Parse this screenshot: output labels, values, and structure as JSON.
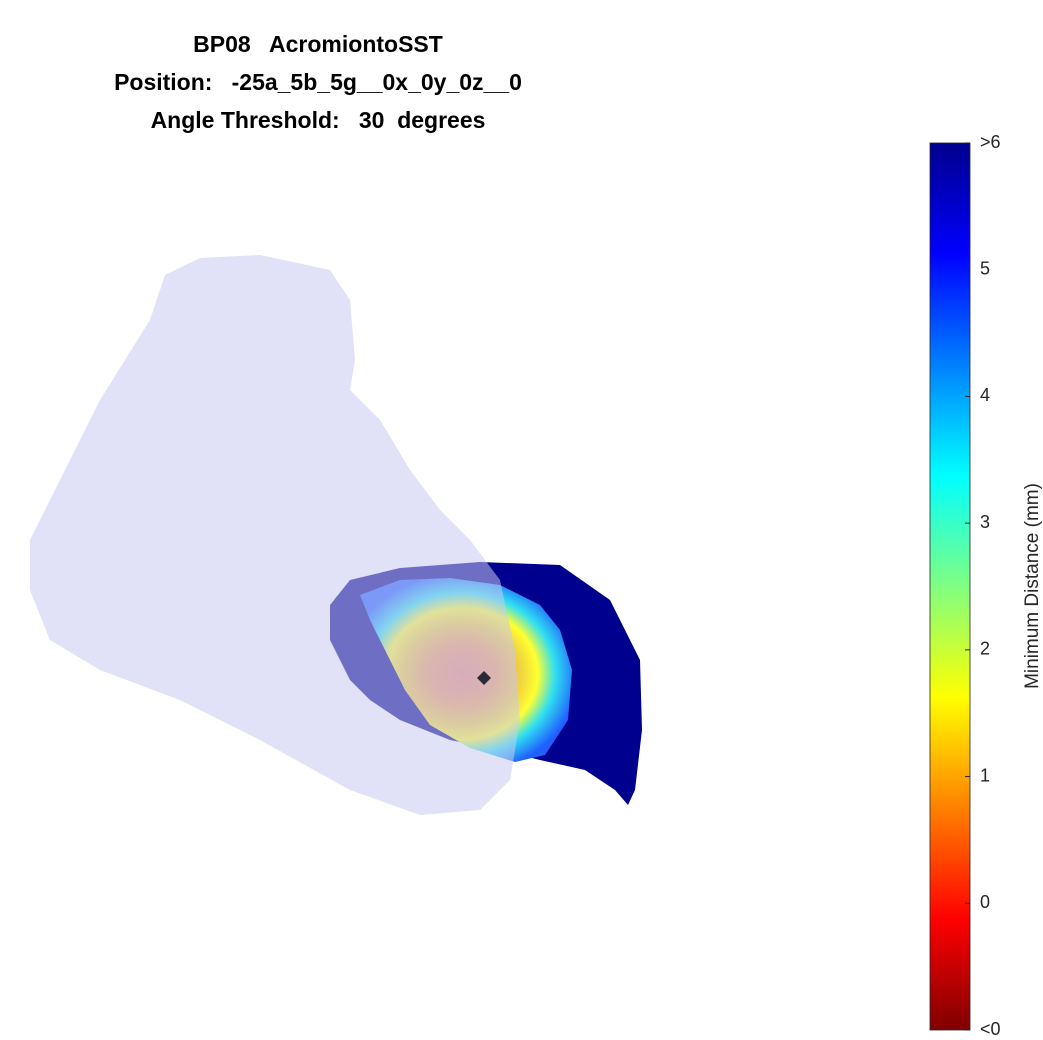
{
  "chart_data": {
    "type": "colorbar",
    "title": [
      "BP08   AcromiontoSST",
      "Position:   -25a_5b_5g__0x_0y_0z__0",
      "Angle Threshold:   30  degrees"
    ],
    "ylabel": "Minimum Distance (mm)",
    "colormap": "jet",
    "ylim": [
      -1,
      6
    ],
    "yticks": [
      {
        "value": -1,
        "label": "<0"
      },
      0,
      1,
      2,
      3,
      4,
      5,
      {
        "value": 6,
        "label": ">6"
      }
    ]
  }
}
